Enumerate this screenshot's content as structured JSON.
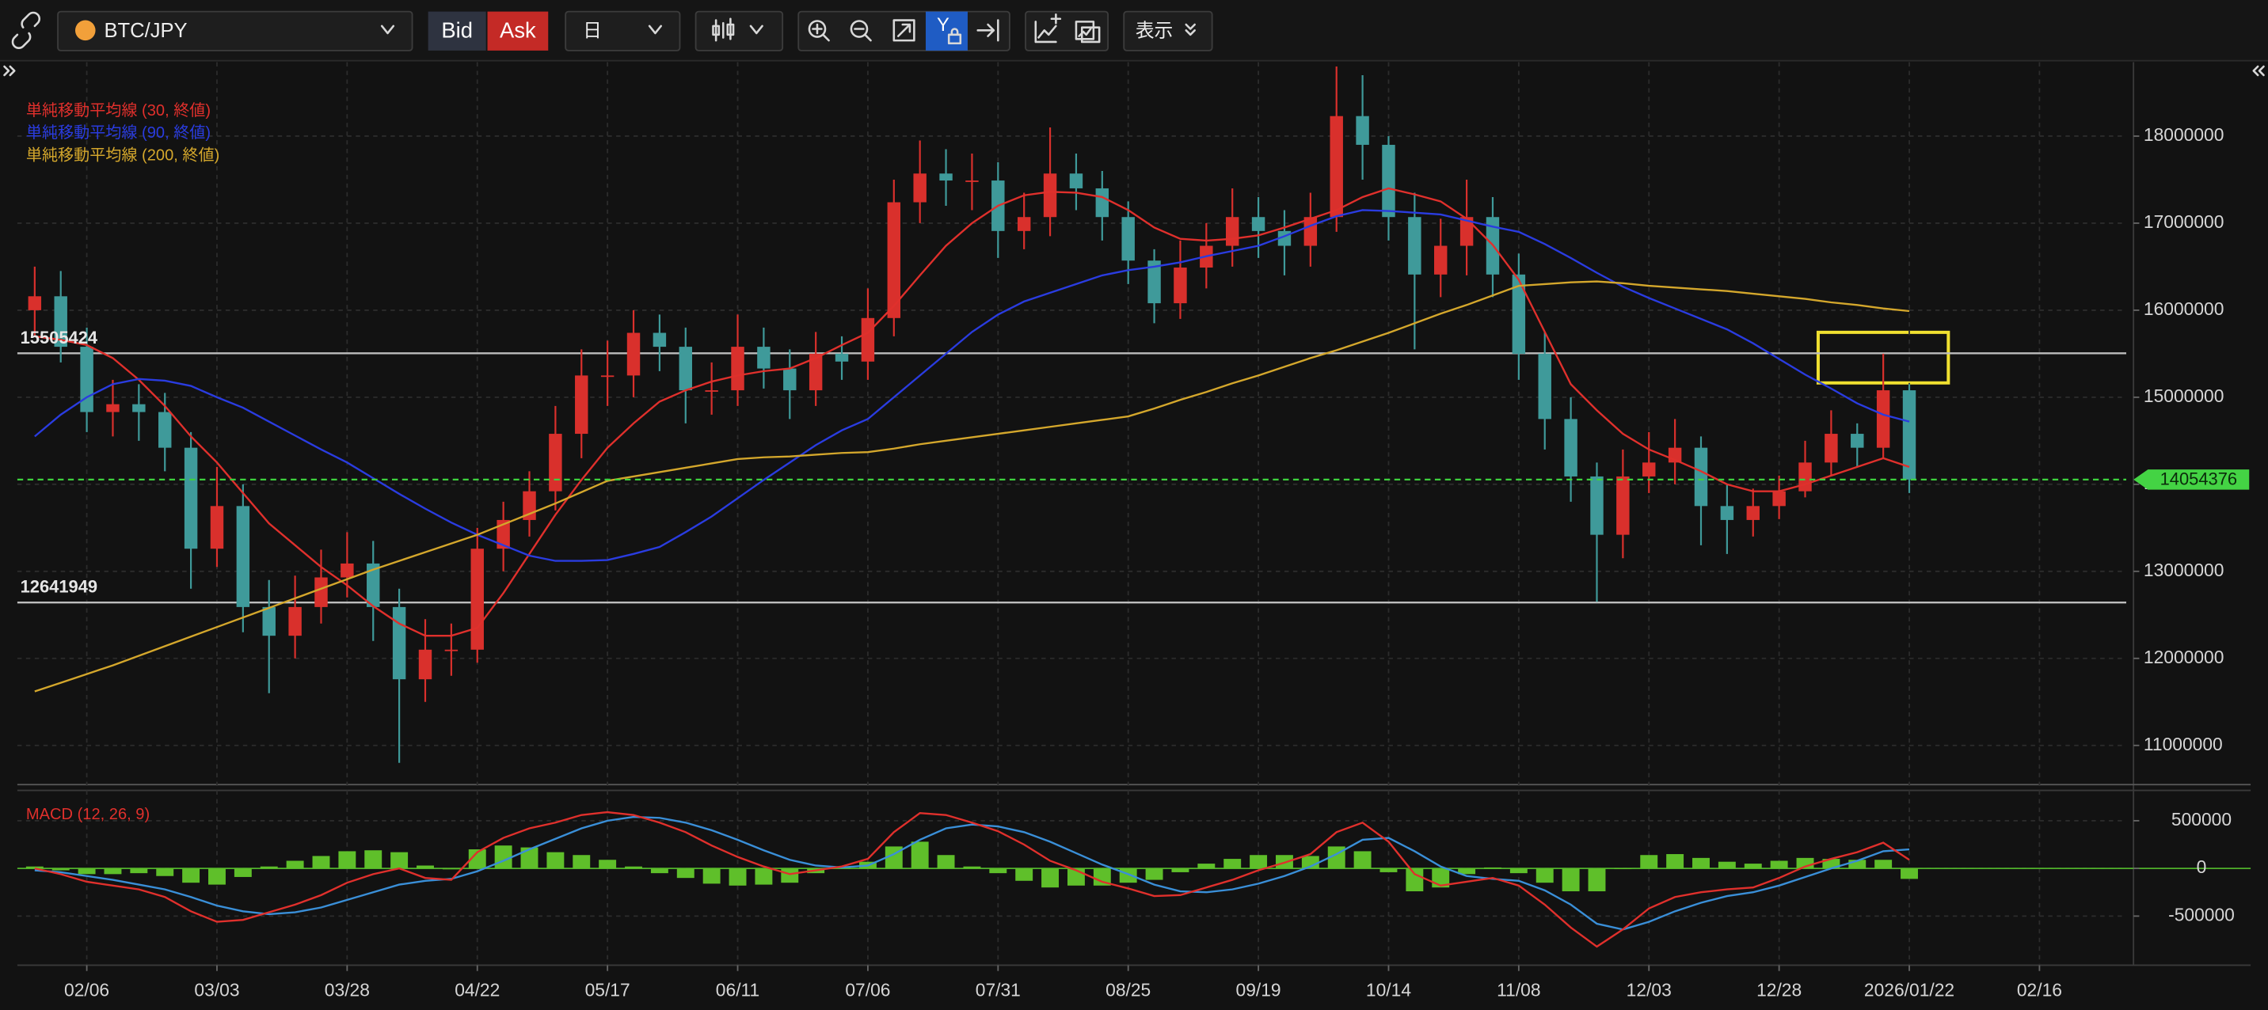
{
  "toolbar": {
    "symbol": "BTC/JPY",
    "bid": "Bid",
    "ask": "Ask",
    "timeframe": "日",
    "y_scale": "Y",
    "view": "表示"
  },
  "chart_data": {
    "type": "candlestick",
    "categories": [
      null,
      null,
      "02/06",
      null,
      null,
      null,
      null,
      "03/03",
      null,
      null,
      null,
      null,
      "03/28",
      null,
      null,
      null,
      null,
      "04/22",
      null,
      null,
      null,
      null,
      "05/17",
      null,
      null,
      null,
      null,
      "06/11",
      null,
      null,
      null,
      null,
      "07/06",
      null,
      null,
      null,
      null,
      "07/31",
      null,
      null,
      null,
      null,
      "08/25",
      null,
      null,
      null,
      null,
      "09/19",
      null,
      null,
      null,
      null,
      "10/14",
      null,
      null,
      null,
      null,
      "11/08",
      null,
      null,
      null,
      null,
      "12/03",
      null,
      null,
      null,
      null,
      "12/28",
      null,
      null,
      null,
      null,
      "2026/01/22",
      null,
      null,
      null,
      null,
      "02/16",
      null
    ],
    "open": [
      16000000,
      16160000,
      15580000,
      14830000,
      14920000,
      14830000,
      14420000,
      13260000,
      13750000,
      12590000,
      12260000,
      12590000,
      12930000,
      13090000,
      12590000,
      11760000,
      12100000,
      12100000,
      13260000,
      13590000,
      13920000,
      14580000,
      15250000,
      15250000,
      15740000,
      15580000,
      15080000,
      15080000,
      15580000,
      15330000,
      15080000,
      15500000,
      15410000,
      15910000,
      17240000,
      17570000,
      17490000,
      17490000,
      16910000,
      17070000,
      17570000,
      17400000,
      17070000,
      16570000,
      16080000,
      16490000,
      16740000,
      17070000,
      16910000,
      16740000,
      17070000,
      18230000,
      17900000,
      17070000,
      16410000,
      16740000,
      17070000,
      16410000,
      15500000,
      14750000,
      14090000,
      13420000,
      14090000,
      14250000,
      14420000,
      13750000,
      13590000,
      13750000,
      13920000,
      14250000,
      14580000,
      14420000,
      15080000,
      null,
      null,
      null,
      null,
      null,
      null
    ],
    "high": [
      16500000,
      16450000,
      15800000,
      15200000,
      15150000,
      15050000,
      14600000,
      14200000,
      14000000,
      12900000,
      12950000,
      13250000,
      13450000,
      13350000,
      12800000,
      12450000,
      12400000,
      13500000,
      13800000,
      14150000,
      14900000,
      15550000,
      15650000,
      16000000,
      15950000,
      15800000,
      15400000,
      15950000,
      15800000,
      15550000,
      15750000,
      15700000,
      16250000,
      17500000,
      17950000,
      17850000,
      17800000,
      17700000,
      17350000,
      18100000,
      17800000,
      17600000,
      17250000,
      16700000,
      16800000,
      17000000,
      17400000,
      17300000,
      17150000,
      17350000,
      18800000,
      18700000,
      18000000,
      17350000,
      17050000,
      17500000,
      17300000,
      16650000,
      15750000,
      15000000,
      14250000,
      14400000,
      14600000,
      14750000,
      14550000,
      14000000,
      13950000,
      14100000,
      14500000,
      14850000,
      14700000,
      15500000,
      15150000,
      null,
      null,
      null,
      null,
      null,
      null
    ],
    "low": [
      15700000,
      15400000,
      14600000,
      14550000,
      14500000,
      14150000,
      12800000,
      13050000,
      12300000,
      11600000,
      12000000,
      12400000,
      12700000,
      12200000,
      10800000,
      11500000,
      11800000,
      11950000,
      13000000,
      13400000,
      13700000,
      14300000,
      14900000,
      15000000,
      15300000,
      14700000,
      14800000,
      14900000,
      15100000,
      14750000,
      14900000,
      15200000,
      15200000,
      15700000,
      17000000,
      17200000,
      17150000,
      16600000,
      16700000,
      16850000,
      17150000,
      16800000,
      16300000,
      15850000,
      15900000,
      16250000,
      16500000,
      16600000,
      16400000,
      16500000,
      16900000,
      17500000,
      16800000,
      15550000,
      16150000,
      16400000,
      16150000,
      15200000,
      14400000,
      13800000,
      12650000,
      13150000,
      13900000,
      14000000,
      13300000,
      13200000,
      13400000,
      13600000,
      13850000,
      14100000,
      14200000,
      14300000,
      13900000,
      null,
      null,
      null,
      null,
      null,
      null
    ],
    "close": [
      16160000,
      15580000,
      14830000,
      14920000,
      14830000,
      14420000,
      13260000,
      13750000,
      12590000,
      12260000,
      12590000,
      12930000,
      13090000,
      12590000,
      11760000,
      12100000,
      12100000,
      13260000,
      13590000,
      13920000,
      14580000,
      15250000,
      15250000,
      15740000,
      15580000,
      15080000,
      15080000,
      15580000,
      15330000,
      15080000,
      15500000,
      15410000,
      15910000,
      17240000,
      17570000,
      17490000,
      17490000,
      16910000,
      17070000,
      17570000,
      17400000,
      17070000,
      16570000,
      16080000,
      16490000,
      16740000,
      17070000,
      16910000,
      16740000,
      17070000,
      18230000,
      17900000,
      17070000,
      16410000,
      16740000,
      17070000,
      16410000,
      15500000,
      14750000,
      14090000,
      13420000,
      14090000,
      14250000,
      14420000,
      13750000,
      13590000,
      13750000,
      13920000,
      14250000,
      14580000,
      14420000,
      15080000,
      14054376,
      null,
      null,
      null,
      null,
      null,
      null
    ],
    "up_color": "#d9302c",
    "down_color": "#3f9a9a",
    "ylim": [
      10550000,
      18850000
    ],
    "yticks": [
      11000000,
      12000000,
      13000000,
      14000000,
      15000000,
      16000000,
      17000000,
      18000000
    ],
    "grid": true,
    "series": [
      {
        "name": "単純移動平均線 (30, 終値)",
        "color": "#e0302c",
        "values": [
          15700000,
          15660000,
          15600000,
          15450000,
          15200000,
          14900000,
          14550000,
          14250000,
          13900000,
          13550000,
          13300000,
          13050000,
          12840000,
          12600000,
          12400000,
          12260000,
          12260000,
          12350000,
          12750000,
          13200000,
          13650000,
          14050000,
          14420000,
          14700000,
          14950000,
          15080000,
          15180000,
          15250000,
          15300000,
          15330000,
          15450000,
          15600000,
          15740000,
          16050000,
          16400000,
          16740000,
          17000000,
          17200000,
          17320000,
          17360000,
          17350000,
          17300000,
          17150000,
          16950000,
          16820000,
          16800000,
          16820000,
          16860000,
          16950000,
          17050000,
          17150000,
          17300000,
          17400000,
          17330000,
          17250000,
          17050000,
          16750000,
          16350000,
          15750000,
          15150000,
          14850000,
          14580000,
          14400000,
          14280000,
          14150000,
          14000000,
          13920000,
          13920000,
          14000000,
          14100000,
          14200000,
          14300000,
          14200000,
          null,
          null,
          null,
          null,
          null,
          null
        ]
      },
      {
        "name": "単純移動平均線 (90, 終値)",
        "color": "#2a3ce0",
        "values": [
          14550000,
          14800000,
          15000000,
          15150000,
          15210000,
          15190000,
          15130000,
          15000000,
          14880000,
          14720000,
          14560000,
          14400000,
          14250000,
          14070000,
          13890000,
          13720000,
          13560000,
          13420000,
          13300000,
          13180000,
          13120000,
          13120000,
          13130000,
          13200000,
          13280000,
          13450000,
          13630000,
          13840000,
          14050000,
          14250000,
          14450000,
          14620000,
          14750000,
          15000000,
          15250000,
          15500000,
          15750000,
          15950000,
          16100000,
          16200000,
          16300000,
          16400000,
          16460000,
          16500000,
          16550000,
          16620000,
          16680000,
          16740000,
          16850000,
          16970000,
          17080000,
          17150000,
          17140000,
          17120000,
          17100000,
          17030000,
          16960000,
          16900000,
          16760000,
          16600000,
          16430000,
          16270000,
          16140000,
          16020000,
          15900000,
          15780000,
          15620000,
          15440000,
          15260000,
          15100000,
          14930000,
          14800000,
          14720000,
          null,
          null,
          null,
          null,
          null,
          null
        ]
      },
      {
        "name": "単純移動平均線 (200, 終値)",
        "color": "#d4a72c",
        "values": [
          11620000,
          11720000,
          11820000,
          11920000,
          12030000,
          12140000,
          12250000,
          12360000,
          12470000,
          12580000,
          12690000,
          12800000,
          12910000,
          13020000,
          13120000,
          13220000,
          13320000,
          13420000,
          13540000,
          13660000,
          13780000,
          13910000,
          14040000,
          14090000,
          14140000,
          14190000,
          14240000,
          14290000,
          14310000,
          14320000,
          14340000,
          14360000,
          14370000,
          14410000,
          14460000,
          14500000,
          14540000,
          14580000,
          14620000,
          14660000,
          14700000,
          14740000,
          14780000,
          14870000,
          14970000,
          15060000,
          15160000,
          15250000,
          15350000,
          15450000,
          15540000,
          15640000,
          15740000,
          15850000,
          15960000,
          16060000,
          16170000,
          16280000,
          16300000,
          16320000,
          16330000,
          16310000,
          16280000,
          16260000,
          16240000,
          16220000,
          16190000,
          16160000,
          16130000,
          16090000,
          16060000,
          16020000,
          15990000,
          null,
          null,
          null,
          null,
          null,
          null
        ]
      }
    ],
    "hlines": [
      15505424,
      12641949
    ],
    "macd": {
      "title": "MACD (12, 26, 9)",
      "ylim": [
        -1015000,
        803000
      ],
      "yticks": [
        -500000,
        0,
        500000
      ],
      "macd_color": "#e0302c",
      "signal_color": "#3a8fd8",
      "histogram_color": "#5fbf2a",
      "macd": [
        0,
        -60000,
        -140000,
        -180000,
        -220000,
        -300000,
        -450000,
        -560000,
        -540000,
        -460000,
        -380000,
        -280000,
        -150000,
        -60000,
        0,
        -100000,
        -120000,
        170000,
        320000,
        420000,
        480000,
        560000,
        590000,
        560000,
        480000,
        380000,
        240000,
        120000,
        20000,
        -60000,
        -20000,
        20000,
        100000,
        380000,
        580000,
        560000,
        480000,
        390000,
        250000,
        80000,
        -20000,
        -140000,
        -210000,
        -290000,
        -280000,
        -200000,
        -120000,
        -20000,
        60000,
        150000,
        380000,
        480000,
        280000,
        -60000,
        -180000,
        -140000,
        -100000,
        -180000,
        -380000,
        -620000,
        -820000,
        -640000,
        -420000,
        -300000,
        -250000,
        -220000,
        -200000,
        -100000,
        20000,
        100000,
        170000,
        270000,
        90000,
        null,
        null,
        null,
        null,
        null,
        null
      ],
      "signal": [
        -20000,
        -40000,
        -80000,
        -120000,
        -170000,
        -220000,
        -300000,
        -390000,
        -450000,
        -480000,
        -460000,
        -410000,
        -330000,
        -250000,
        -170000,
        -130000,
        -110000,
        -30000,
        80000,
        200000,
        310000,
        420000,
        500000,
        540000,
        530000,
        480000,
        400000,
        300000,
        190000,
        90000,
        30000,
        10000,
        30000,
        150000,
        300000,
        420000,
        460000,
        440000,
        380000,
        280000,
        160000,
        40000,
        -60000,
        -170000,
        -240000,
        -250000,
        -220000,
        -160000,
        -80000,
        20000,
        150000,
        300000,
        320000,
        180000,
        20000,
        -80000,
        -110000,
        -130000,
        -230000,
        -380000,
        -580000,
        -640000,
        -560000,
        -450000,
        -360000,
        -290000,
        -250000,
        -180000,
        -90000,
        0,
        80000,
        180000,
        200000,
        null,
        null,
        null,
        null,
        null,
        null
      ],
      "histogram": [
        20000,
        -20000,
        -60000,
        -60000,
        -50000,
        -80000,
        -150000,
        -170000,
        -90000,
        20000,
        80000,
        130000,
        180000,
        190000,
        170000,
        30000,
        -10000,
        200000,
        240000,
        220000,
        170000,
        140000,
        90000,
        20000,
        -50000,
        -100000,
        -160000,
        -180000,
        -170000,
        -150000,
        -50000,
        10000,
        70000,
        230000,
        280000,
        140000,
        20000,
        -50000,
        -130000,
        -200000,
        -180000,
        -180000,
        -150000,
        -120000,
        -40000,
        50000,
        100000,
        140000,
        140000,
        130000,
        230000,
        180000,
        -40000,
        -240000,
        -200000,
        -60000,
        10000,
        -50000,
        -150000,
        -240000,
        -240000,
        0,
        140000,
        150000,
        110000,
        70000,
        50000,
        80000,
        110000,
        100000,
        90000,
        90000,
        -110000,
        null,
        null,
        null,
        null,
        null,
        null
      ]
    }
  }
}
